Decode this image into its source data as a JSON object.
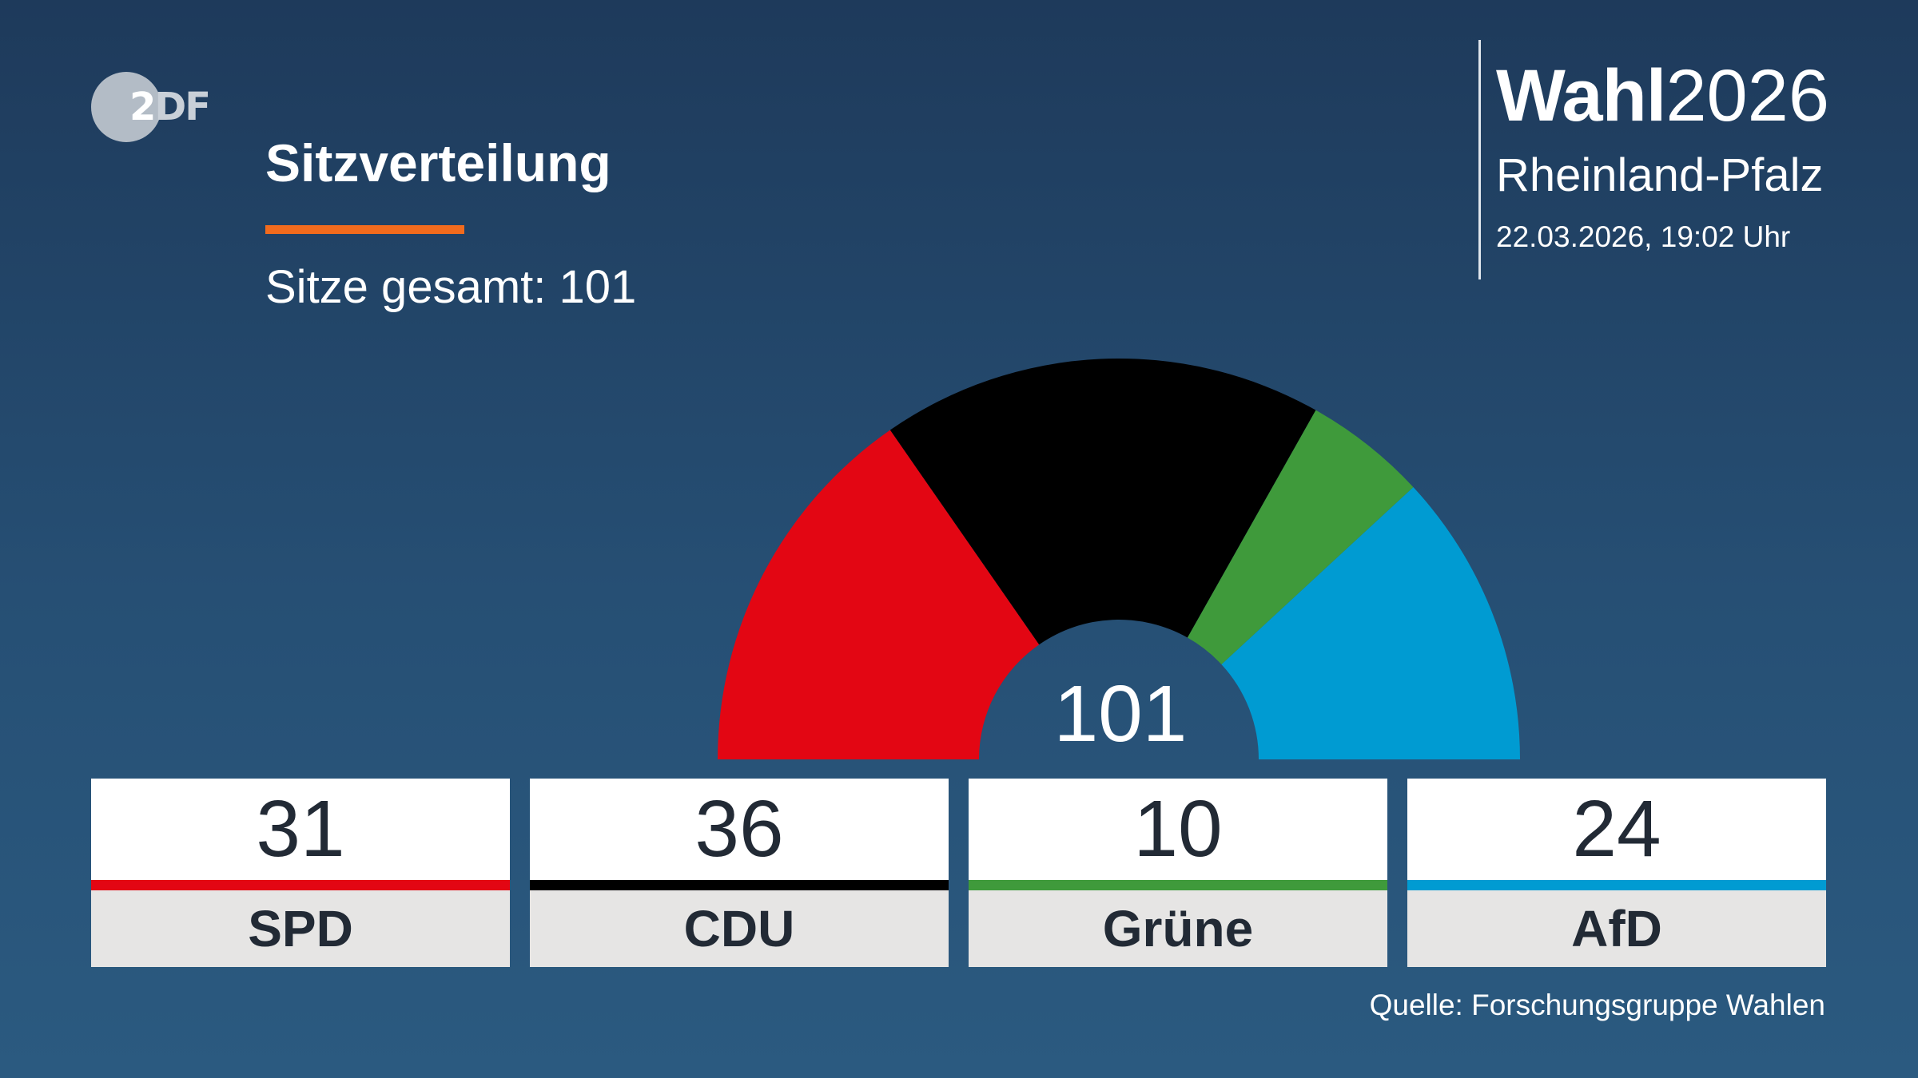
{
  "logo": {
    "text_two": "2",
    "text_df": "DF"
  },
  "header": {
    "title": "Sitzverteilung",
    "total_label": "Sitze gesamt: 101",
    "accent_color": "#f26b1d"
  },
  "brand": {
    "wahl": "Wahl",
    "year": "2026",
    "region": "Rheinland-Pfalz",
    "timestamp": "22.03.2026, 19:02 Uhr"
  },
  "chart_data": {
    "type": "pie",
    "variant": "hemicycle",
    "title": "Sitzverteilung",
    "total": 101,
    "center_label": "101",
    "categories": [
      "SPD",
      "CDU",
      "Grüne",
      "AfD"
    ],
    "values": [
      31,
      36,
      10,
      24
    ],
    "colors": [
      "#e30613",
      "#000000",
      "#3f9a3b",
      "#009bd2"
    ]
  },
  "parties": [
    {
      "name": "SPD",
      "seats": "31",
      "color": "#e30613"
    },
    {
      "name": "CDU",
      "seats": "36",
      "color": "#000000"
    },
    {
      "name": "Grüne",
      "seats": "10",
      "color": "#3f9a3b"
    },
    {
      "name": "AfD",
      "seats": "24",
      "color": "#009bd2"
    }
  ],
  "footer": {
    "source": "Quelle: Forschungsgruppe Wahlen"
  }
}
